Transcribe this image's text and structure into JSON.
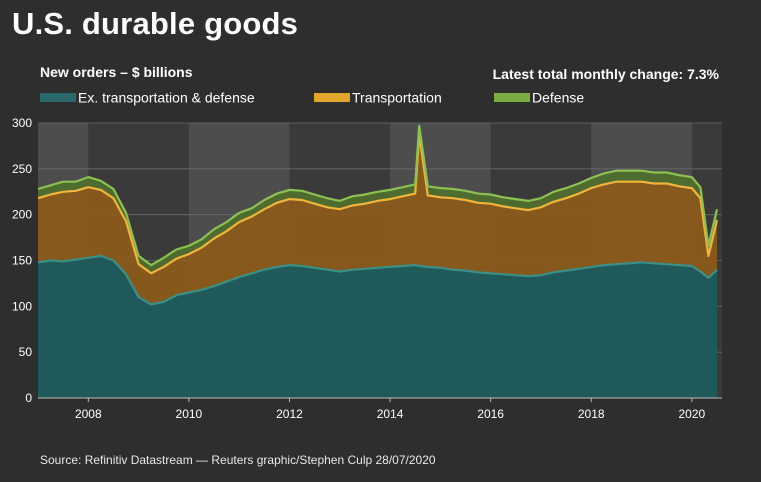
{
  "title": "U.S. durable goods",
  "subtitle": "New orders – $ billions",
  "latest_change": "Latest total monthly change: 7.3%",
  "source": "Source: Refinitiv Datastream — Reuters graphic/Stephen Culp 28/07/2020",
  "legend": [
    {
      "label": "Ex. transportation & defense",
      "color": "#2b6a6a"
    },
    {
      "label": "Transportation",
      "color": "#e0a72a"
    },
    {
      "label": "Defense",
      "color": "#7cad45"
    }
  ],
  "chart_data": {
    "type": "area",
    "stacked": true,
    "xlabel": "",
    "ylabel": "",
    "xlim": [
      2007.0,
      2020.6
    ],
    "ylim": [
      0,
      300
    ],
    "y_ticks": [
      0,
      50,
      100,
      150,
      200,
      250,
      300
    ],
    "x_ticks": [
      "2008",
      "2010",
      "2012",
      "2014",
      "2016",
      "2018",
      "2020"
    ],
    "grid": "horizontal",
    "recession_shading": false,
    "x": [
      2007.0,
      2007.25,
      2007.5,
      2007.75,
      2008.0,
      2008.25,
      2008.5,
      2008.75,
      2009.0,
      2009.25,
      2009.5,
      2009.75,
      2010.0,
      2010.25,
      2010.5,
      2010.75,
      2011.0,
      2011.25,
      2011.5,
      2011.75,
      2012.0,
      2012.25,
      2012.5,
      2012.75,
      2013.0,
      2013.25,
      2013.5,
      2013.75,
      2014.0,
      2014.25,
      2014.5,
      2014.58,
      2014.75,
      2015.0,
      2015.25,
      2015.5,
      2015.75,
      2016.0,
      2016.25,
      2016.5,
      2016.75,
      2017.0,
      2017.25,
      2017.5,
      2017.75,
      2018.0,
      2018.25,
      2018.5,
      2018.75,
      2019.0,
      2019.25,
      2019.5,
      2019.75,
      2020.0,
      2020.17,
      2020.33,
      2020.5
    ],
    "series": [
      {
        "name": "Ex. transportation & defense",
        "values": [
          148,
          150,
          149,
          151,
          153,
          155,
          150,
          135,
          110,
          102,
          105,
          112,
          115,
          118,
          122,
          127,
          132,
          136,
          140,
          143,
          145,
          144,
          142,
          140,
          138,
          140,
          141,
          142,
          143,
          144,
          145,
          144,
          143,
          142,
          140,
          139,
          137,
          136,
          135,
          134,
          133,
          134,
          137,
          139,
          141,
          143,
          145,
          146,
          147,
          148,
          147,
          146,
          145,
          144,
          138,
          131,
          140
        ]
      },
      {
        "name": "Transportation",
        "values": [
          70,
          72,
          76,
          75,
          77,
          72,
          68,
          58,
          36,
          34,
          38,
          40,
          42,
          46,
          52,
          55,
          60,
          62,
          66,
          70,
          72,
          72,
          70,
          68,
          68,
          70,
          71,
          73,
          74,
          76,
          78,
          143,
          78,
          77,
          78,
          77,
          76,
          76,
          74,
          73,
          72,
          74,
          77,
          79,
          82,
          86,
          88,
          90,
          89,
          88,
          87,
          88,
          86,
          85,
          80,
          24,
          54
        ]
      },
      {
        "name": "Defense",
        "values": [
          10,
          10,
          11,
          10,
          11,
          10,
          10,
          9,
          9,
          9,
          10,
          10,
          9,
          9,
          10,
          10,
          10,
          9,
          10,
          10,
          10,
          10,
          10,
          10,
          9,
          10,
          10,
          10,
          10,
          10,
          10,
          10,
          10,
          10,
          10,
          10,
          10,
          10,
          10,
          10,
          10,
          10,
          11,
          11,
          11,
          11,
          12,
          12,
          12,
          12,
          12,
          12,
          12,
          12,
          12,
          11,
          12
        ]
      }
    ]
  }
}
